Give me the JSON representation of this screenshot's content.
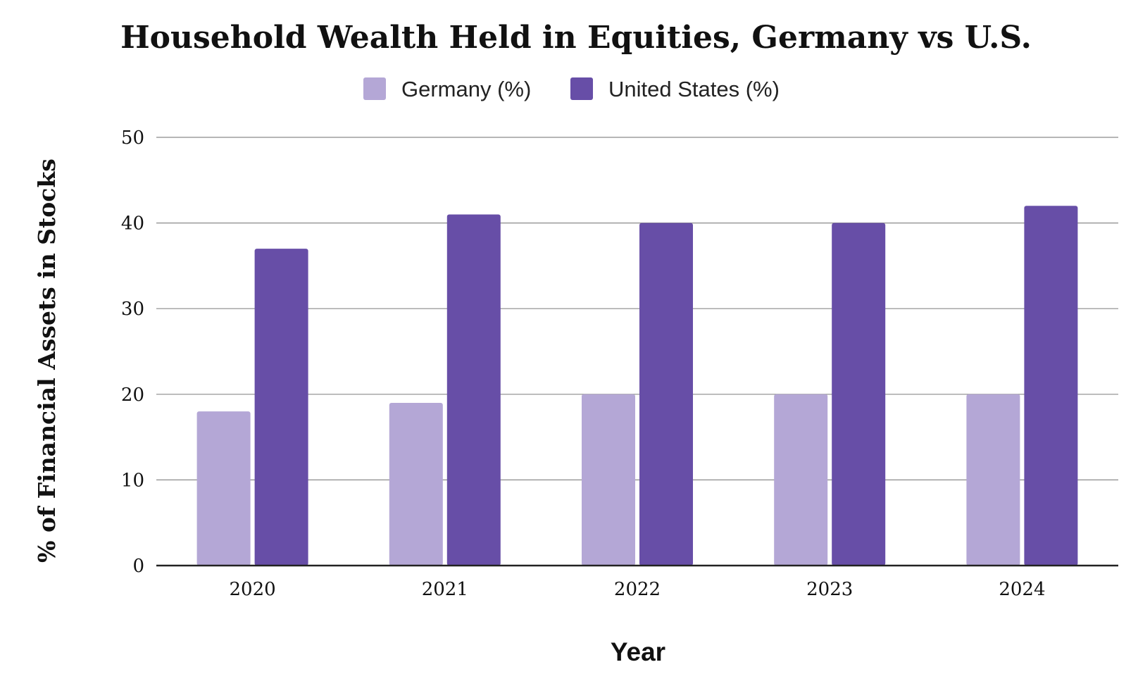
{
  "chart_data": {
    "type": "bar",
    "title": "Household Wealth Held in Equities, Germany vs U.S.",
    "xlabel": "Year",
    "ylabel": "% of Financial Assets in Stocks",
    "categories": [
      "2020",
      "2021",
      "2022",
      "2023",
      "2024"
    ],
    "series": [
      {
        "name": "Germany (%)",
        "values": [
          18,
          19,
          20,
          20,
          20
        ],
        "color": "#b4a7d6"
      },
      {
        "name": "United States (%)",
        "values": [
          37,
          41,
          40,
          40,
          42
        ],
        "color": "#674ea7"
      }
    ],
    "ylim": [
      0,
      50
    ],
    "yticks": [
      "0",
      "10",
      "20",
      "30",
      "40",
      "50"
    ],
    "grid": true,
    "legend_position": "top-center"
  }
}
